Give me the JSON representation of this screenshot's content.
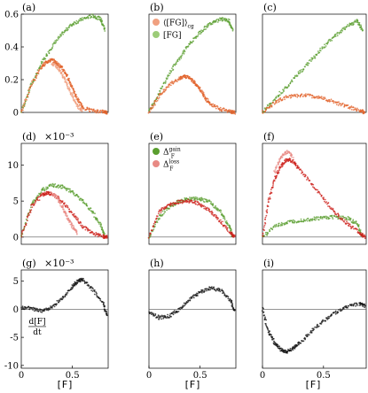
{
  "colors": {
    "green": "#5a9e2f",
    "green_light": "#9ccc78",
    "orange": "#e2622a",
    "orange_light": "#f0a080",
    "red": "#cc1f1a",
    "red_light": "#e88a84",
    "black": "#111111"
  },
  "xlabel": "[F]",
  "chart_data": [
    {
      "id": "a",
      "type": "scatter",
      "panel_label": "(a)",
      "xlim": [
        0,
        0.85
      ],
      "ylim": [
        0,
        0.6
      ],
      "yticks": [
        "0",
        "0.2",
        "0.4",
        "0.6"
      ],
      "ytick_values": [
        0,
        0.2,
        0.4,
        0.6
      ],
      "series": [
        {
          "color": "green",
          "x": [
            0,
            0.1,
            0.2,
            0.3,
            0.4,
            0.5,
            0.6,
            0.7,
            0.78,
            0.82
          ],
          "y": [
            0,
            0.17,
            0.3,
            0.4,
            0.48,
            0.54,
            0.57,
            0.59,
            0.57,
            0.5
          ]
        },
        {
          "color": "orange",
          "x": [
            0,
            0.1,
            0.2,
            0.25,
            0.3,
            0.35,
            0.4,
            0.45,
            0.5,
            0.55,
            0.6,
            0.7,
            0.8,
            0.84
          ],
          "y": [
            0,
            0.17,
            0.28,
            0.31,
            0.32,
            0.3,
            0.27,
            0.22,
            0.15,
            0.08,
            0.03,
            0.01,
            0.005,
            0
          ]
        },
        {
          "color": "orange_light",
          "x": [
            0.3,
            0.35,
            0.4,
            0.45,
            0.5,
            0.55,
            0.6
          ],
          "y": [
            0.3,
            0.28,
            0.23,
            0.17,
            0.1,
            0.04,
            0.01
          ]
        }
      ]
    },
    {
      "id": "b",
      "type": "scatter",
      "panel_label": "(b)",
      "xlim": [
        0,
        0.85
      ],
      "ylim": [
        0,
        0.6
      ],
      "legend": [
        {
          "color": "orange_light",
          "label": "⟨[FG]⟩",
          "sub": "cg"
        },
        {
          "color": "green_light",
          "label": "[FG]",
          "sub": ""
        }
      ],
      "series": [
        {
          "color": "green",
          "x": [
            0,
            0.1,
            0.2,
            0.3,
            0.4,
            0.5,
            0.6,
            0.7,
            0.78,
            0.82
          ],
          "y": [
            0,
            0.12,
            0.24,
            0.33,
            0.42,
            0.49,
            0.54,
            0.57,
            0.56,
            0.5
          ]
        },
        {
          "color": "orange",
          "x": [
            0,
            0.1,
            0.2,
            0.3,
            0.35,
            0.4,
            0.45,
            0.5,
            0.55,
            0.6,
            0.7,
            0.8,
            0.84
          ],
          "y": [
            0,
            0.1,
            0.17,
            0.21,
            0.22,
            0.21,
            0.18,
            0.14,
            0.09,
            0.05,
            0.02,
            0.005,
            0
          ]
        }
      ]
    },
    {
      "id": "c",
      "type": "scatter",
      "panel_label": "(c)",
      "xlim": [
        0,
        0.85
      ],
      "ylim": [
        0,
        0.6
      ],
      "series": [
        {
          "color": "green",
          "x": [
            0,
            0.1,
            0.2,
            0.3,
            0.4,
            0.5,
            0.6,
            0.7,
            0.78,
            0.82
          ],
          "y": [
            0,
            0.08,
            0.16,
            0.24,
            0.32,
            0.4,
            0.47,
            0.53,
            0.56,
            0.5
          ]
        },
        {
          "color": "orange",
          "x": [
            0,
            0.1,
            0.2,
            0.3,
            0.4,
            0.5,
            0.6,
            0.7,
            0.8,
            0.84
          ],
          "y": [
            0,
            0.06,
            0.095,
            0.105,
            0.1,
            0.085,
            0.06,
            0.035,
            0.01,
            0
          ]
        }
      ]
    },
    {
      "id": "d",
      "type": "scatter",
      "panel_label": "(d)",
      "exponent": "×10⁻³",
      "xlim": [
        0,
        0.85
      ],
      "ylim": [
        -1,
        13
      ],
      "yticks": [
        "0",
        "5",
        "10"
      ],
      "ytick_values": [
        0,
        5,
        10
      ],
      "zero_line": true,
      "series": [
        {
          "color": "green",
          "x": [
            0,
            0.1,
            0.2,
            0.3,
            0.4,
            0.5,
            0.6,
            0.7,
            0.78,
            0.82
          ],
          "y": [
            0,
            4.5,
            6.5,
            7.2,
            7.0,
            6.2,
            5.0,
            3.4,
            1.5,
            0
          ]
        },
        {
          "color": "red",
          "x": [
            0,
            0.1,
            0.2,
            0.25,
            0.3,
            0.4,
            0.5,
            0.6,
            0.7,
            0.8,
            0.84
          ],
          "y": [
            0,
            4.2,
            5.8,
            6.1,
            6.0,
            5.0,
            3.2,
            1.5,
            0.5,
            0.1,
            0
          ]
        },
        {
          "color": "red_light",
          "x": [
            0.3,
            0.35,
            0.4,
            0.45,
            0.5,
            0.55
          ],
          "y": [
            6.0,
            5.5,
            4.2,
            2.8,
            1.5,
            0.5
          ]
        }
      ]
    },
    {
      "id": "e",
      "type": "scatter",
      "panel_label": "(e)",
      "xlim": [
        0,
        0.85
      ],
      "ylim": [
        -1,
        13
      ],
      "zero_line": true,
      "legend": [
        {
          "color": "green",
          "label": "Δ",
          "sub": "F",
          "sup": "gain"
        },
        {
          "color": "red_light",
          "label": "Δ",
          "sub": "F",
          "sup": "loss"
        }
      ],
      "series": [
        {
          "color": "green",
          "x": [
            0,
            0.1,
            0.2,
            0.3,
            0.4,
            0.5,
            0.6,
            0.7,
            0.78,
            0.82
          ],
          "y": [
            0,
            2.8,
            4.2,
            5.0,
            5.4,
            5.3,
            4.8,
            3.5,
            1.7,
            0
          ]
        },
        {
          "color": "red",
          "x": [
            0,
            0.1,
            0.2,
            0.3,
            0.4,
            0.5,
            0.6,
            0.7,
            0.8,
            0.84
          ],
          "y": [
            0,
            3.5,
            4.5,
            4.9,
            5.0,
            4.6,
            3.6,
            2.2,
            0.6,
            0
          ]
        }
      ]
    },
    {
      "id": "f",
      "type": "scatter",
      "panel_label": "(f)",
      "xlim": [
        0,
        0.85
      ],
      "ylim": [
        -1,
        13
      ],
      "zero_line": true,
      "series": [
        {
          "color": "green",
          "x": [
            0,
            0.1,
            0.2,
            0.3,
            0.4,
            0.5,
            0.6,
            0.7,
            0.78,
            0.82
          ],
          "y": [
            0,
            1.5,
            2.0,
            2.3,
            2.5,
            2.7,
            2.8,
            2.6,
            1.8,
            0
          ]
        },
        {
          "color": "red",
          "x": [
            0,
            0.05,
            0.1,
            0.15,
            0.2,
            0.25,
            0.3,
            0.4,
            0.5,
            0.6,
            0.7,
            0.8,
            0.84
          ],
          "y": [
            0,
            5.0,
            8.0,
            9.8,
            10.8,
            10.5,
            9.5,
            7.5,
            5.3,
            3.3,
            1.8,
            0.5,
            0
          ]
        },
        {
          "color": "red_light",
          "x": [
            0.1,
            0.15,
            0.2,
            0.25
          ],
          "y": [
            9.0,
            11.0,
            11.8,
            11.2
          ]
        }
      ]
    },
    {
      "id": "g",
      "type": "scatter",
      "panel_label": "(g)",
      "exponent": "×10⁻³",
      "xlim": [
        0,
        0.85
      ],
      "ylim": [
        -10.5,
        7
      ],
      "yticks": [
        "5",
        "0",
        "-5",
        "-10"
      ],
      "ytick_values": [
        5,
        0,
        -5,
        -10
      ],
      "zero_line": true,
      "xticks": [
        "0",
        "0.5"
      ],
      "xtick_values": [
        0,
        0.5
      ],
      "annotation": {
        "numerator": "d[F]",
        "denominator": "dt"
      },
      "series": [
        {
          "color": "black",
          "x": [
            0,
            0.1,
            0.2,
            0.3,
            0.4,
            0.5,
            0.55,
            0.6,
            0.7,
            0.8,
            0.84
          ],
          "y": [
            0.3,
            0.1,
            -0.3,
            0.3,
            2.0,
            4.0,
            5.0,
            5.3,
            3.5,
            1.0,
            -1.2
          ]
        }
      ]
    },
    {
      "id": "h",
      "type": "scatter",
      "panel_label": "(h)",
      "xlim": [
        0,
        0.85
      ],
      "ylim": [
        -10.5,
        7
      ],
      "zero_line": true,
      "xticks": [
        "0",
        "0.5"
      ],
      "xtick_values": [
        0,
        0.5
      ],
      "series": [
        {
          "color": "black",
          "x": [
            0,
            0.1,
            0.2,
            0.3,
            0.4,
            0.5,
            0.6,
            0.7,
            0.8,
            0.84
          ],
          "y": [
            -0.5,
            -1.5,
            -1.2,
            0.0,
            1.8,
            3.0,
            3.8,
            3.4,
            1.5,
            -0.5
          ]
        }
      ]
    },
    {
      "id": "i",
      "type": "scatter",
      "panel_label": "(i)",
      "xlim": [
        0,
        0.85
      ],
      "ylim": [
        -10.5,
        7
      ],
      "zero_line": true,
      "xticks": [
        "0",
        "0.5"
      ],
      "xtick_values": [
        0,
        0.5
      ],
      "series": [
        {
          "color": "black",
          "x": [
            0,
            0.05,
            0.1,
            0.15,
            0.2,
            0.25,
            0.3,
            0.4,
            0.5,
            0.6,
            0.7,
            0.8,
            0.84
          ],
          "y": [
            0,
            -4.0,
            -6.0,
            -7.2,
            -7.6,
            -7.0,
            -6.0,
            -4.0,
            -2.0,
            -0.5,
            0.5,
            1.0,
            0.5
          ]
        }
      ]
    }
  ]
}
